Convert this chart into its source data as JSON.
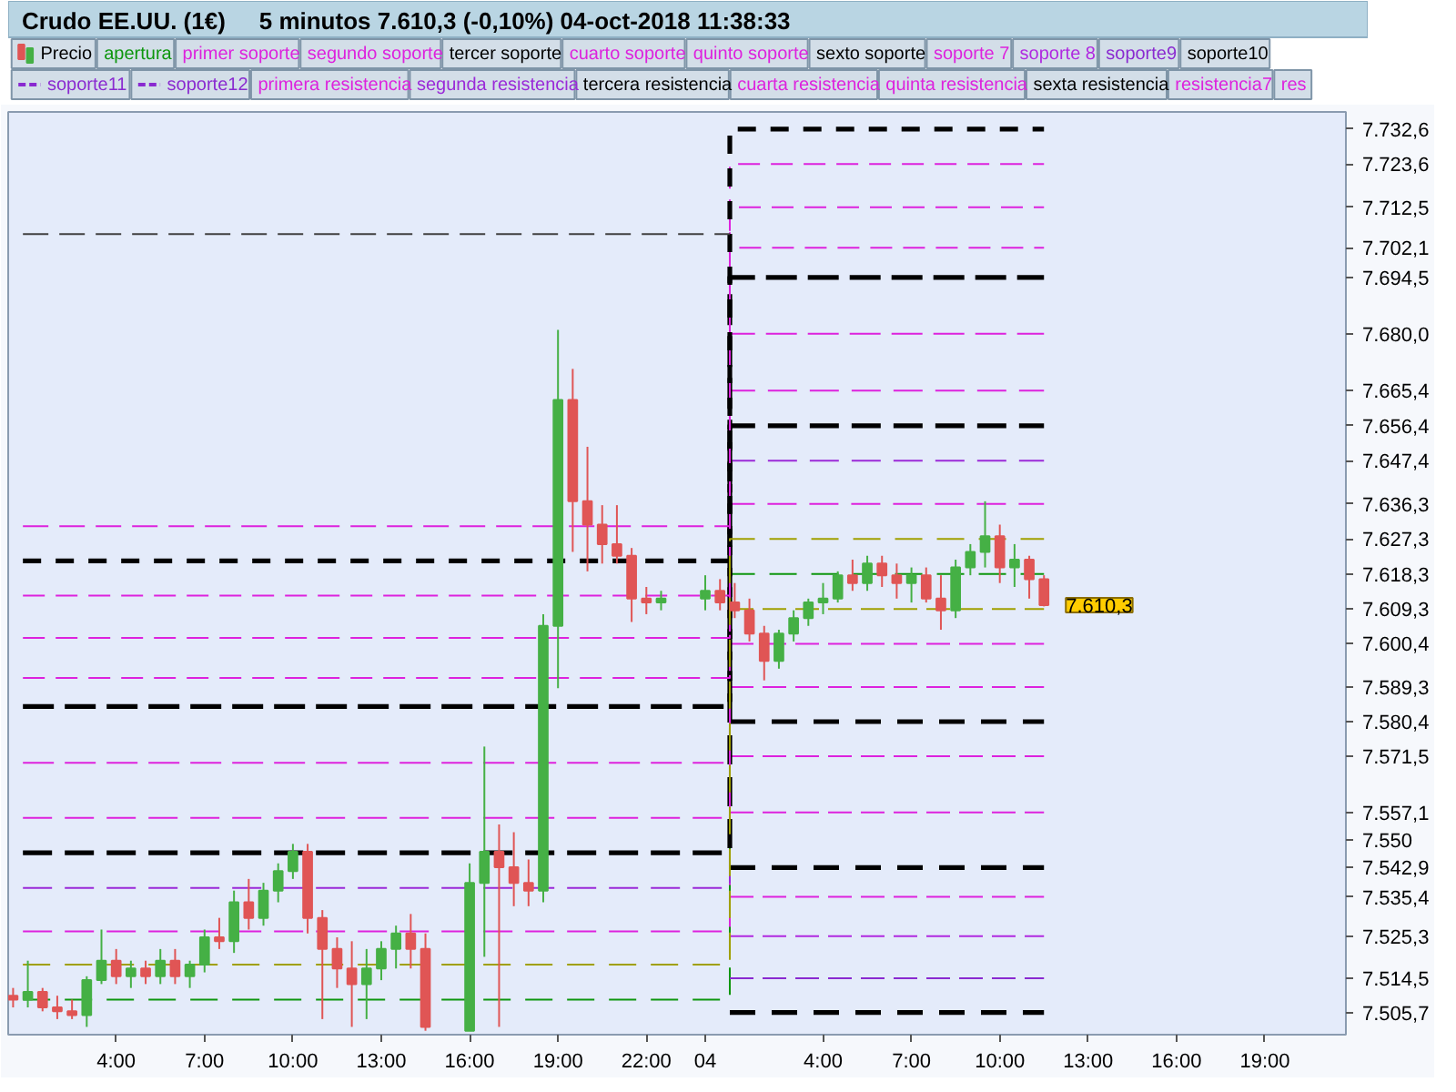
{
  "chart_data": {
    "type": "candlestick",
    "title": "Crudo EE.UU. (1€)",
    "subtitle": "5 minutos   7.610,3 (-0,10%)   04-oct-2018 11:38:33",
    "legend": "top",
    "xlim": [
      "2018-10-03T00:20",
      "2018-10-04T21:45"
    ],
    "xticks": [
      {
        "value": "2018-10-03T04:00",
        "label": "4:00"
      },
      {
        "value": "2018-10-03T07:00",
        "label": "7:00"
      },
      {
        "value": "2018-10-03T10:00",
        "label": "10:00"
      },
      {
        "value": "2018-10-03T13:00",
        "label": "13:00"
      },
      {
        "value": "2018-10-03T16:00",
        "label": "16:00"
      },
      {
        "value": "2018-10-03T19:00",
        "label": "19:00"
      },
      {
        "value": "2018-10-03T22:00",
        "label": "22:00"
      },
      {
        "value": "2018-10-04T00:00",
        "label": "04"
      },
      {
        "value": "2018-10-04T04:00",
        "label": "4:00"
      },
      {
        "value": "2018-10-04T07:00",
        "label": "7:00"
      },
      {
        "value": "2018-10-04T10:00",
        "label": "10:00"
      },
      {
        "value": "2018-10-04T13:00",
        "label": "13:00"
      },
      {
        "value": "2018-10-04T16:00",
        "label": "16:00"
      },
      {
        "value": "2018-10-04T19:00",
        "label": "19:00"
      }
    ],
    "ylim": [
      7500,
      7737
    ],
    "yticks": [
      {
        "value": 7505.7,
        "label": "7.505,7"
      },
      {
        "value": 7514.5,
        "label": "7.514,5"
      },
      {
        "value": 7525.3,
        "label": "7.525,3"
      },
      {
        "value": 7535.4,
        "label": "7.535,4"
      },
      {
        "value": 7542.9,
        "label": "7.542,9"
      },
      {
        "value": 7550,
        "label": "7.550"
      },
      {
        "value": 7557.1,
        "label": "7.557,1"
      },
      {
        "value": 7571.5,
        "label": "7.571,5"
      },
      {
        "value": 7580.4,
        "label": "7.580,4"
      },
      {
        "value": 7589.3,
        "label": "7.589,3"
      },
      {
        "value": 7600.4,
        "label": "7.600,4"
      },
      {
        "value": 7609.3,
        "label": "7.609,3"
      },
      {
        "value": 7618.3,
        "label": "7.618,3"
      },
      {
        "value": 7627.3,
        "label": "7.627,3"
      },
      {
        "value": 7636.3,
        "label": "7.636,3"
      },
      {
        "value": 7647.4,
        "label": "7.647,4"
      },
      {
        "value": 7656.4,
        "label": "7.656,4"
      },
      {
        "value": 7665.4,
        "label": "7.665,4"
      },
      {
        "value": 7680.0,
        "label": "7.680,0"
      },
      {
        "value": 7694.5,
        "label": "7.694,5"
      },
      {
        "value": 7702.1,
        "label": "7.702,1"
      },
      {
        "value": 7712.5,
        "label": "7.712,5"
      },
      {
        "value": 7723.6,
        "label": "7.723,6"
      },
      {
        "value": 7732.6,
        "label": "7.732,6"
      }
    ],
    "annotations": [
      {
        "text": "7.610,3",
        "x": "2018-10-04T11:30",
        "y": 7610.3
      }
    ],
    "x": [
      "2018-10-03T00:50",
      "2018-10-04T00:50",
      "2018-10-04T00:50",
      "2018-10-04T11:30"
    ],
    "series": [
      {
        "name": "Precio",
        "x": [
          "2018-10-03T00:30",
          "2018-10-03T01:00",
          "2018-10-03T01:30",
          "2018-10-03T02:00",
          "2018-10-03T02:30",
          "2018-10-03T03:00",
          "2018-10-03T03:30",
          "2018-10-03T04:00",
          "2018-10-03T04:30",
          "2018-10-03T05:00",
          "2018-10-03T05:30",
          "2018-10-03T06:00",
          "2018-10-03T06:30",
          "2018-10-03T07:00",
          "2018-10-03T07:30",
          "2018-10-03T08:00",
          "2018-10-03T08:30",
          "2018-10-03T09:00",
          "2018-10-03T09:30",
          "2018-10-03T10:00",
          "2018-10-03T10:30",
          "2018-10-03T11:00",
          "2018-10-03T11:30",
          "2018-10-03T12:00",
          "2018-10-03T12:30",
          "2018-10-03T13:00",
          "2018-10-03T13:30",
          "2018-10-03T14:00",
          "2018-10-03T14:30",
          "2018-10-03T16:00",
          "2018-10-03T16:30",
          "2018-10-03T17:00",
          "2018-10-03T17:30",
          "2018-10-03T18:00",
          "2018-10-03T18:30",
          "2018-10-03T19:00",
          "2018-10-03T19:30",
          "2018-10-03T20:00",
          "2018-10-03T20:30",
          "2018-10-03T21:00",
          "2018-10-03T21:30",
          "2018-10-03T22:00",
          "2018-10-03T22:30",
          "2018-10-04T00:00",
          "2018-10-04T00:30",
          "2018-10-04T01:00",
          "2018-10-04T01:30",
          "2018-10-04T02:00",
          "2018-10-04T02:30",
          "2018-10-04T03:00",
          "2018-10-04T03:30",
          "2018-10-04T04:00",
          "2018-10-04T04:30",
          "2018-10-04T05:00",
          "2018-10-04T05:30",
          "2018-10-04T06:00",
          "2018-10-04T06:30",
          "2018-10-04T07:00",
          "2018-10-04T07:30",
          "2018-10-04T08:00",
          "2018-10-04T08:30",
          "2018-10-04T09:00",
          "2018-10-04T09:30",
          "2018-10-04T10:00",
          "2018-10-04T10:30",
          "2018-10-04T11:00",
          "2018-10-04T11:30"
        ],
        "ohlc": [
          [
            7510,
            7512,
            7507,
            7509
          ],
          [
            7509,
            7519,
            7507,
            7511
          ],
          [
            7511,
            7512,
            7506,
            7507
          ],
          [
            7507,
            7510,
            7504,
            7506
          ],
          [
            7506,
            7509,
            7504,
            7505
          ],
          [
            7505,
            7515,
            7502,
            7514
          ],
          [
            7514,
            7527,
            7513,
            7519
          ],
          [
            7519,
            7522,
            7513,
            7515
          ],
          [
            7515,
            7519,
            7512,
            7517
          ],
          [
            7517,
            7519,
            7513,
            7515
          ],
          [
            7515,
            7522,
            7513,
            7519
          ],
          [
            7519,
            7522,
            7513,
            7515
          ],
          [
            7515,
            7519,
            7512,
            7518
          ],
          [
            7518,
            7527,
            7516,
            7525
          ],
          [
            7525,
            7530,
            7522,
            7524
          ],
          [
            7524,
            7537,
            7521,
            7534
          ],
          [
            7534,
            7540,
            7527,
            7530
          ],
          [
            7530,
            7539,
            7528,
            7537
          ],
          [
            7537,
            7544,
            7534,
            7542
          ],
          [
            7542,
            7549,
            7540,
            7547
          ],
          [
            7547,
            7549,
            7526,
            7530
          ],
          [
            7530,
            7532,
            7504,
            7522
          ],
          [
            7522,
            7525,
            7512,
            7517
          ],
          [
            7517,
            7524,
            7502,
            7513
          ],
          [
            7513,
            7522,
            7504,
            7517
          ],
          [
            7517,
            7524,
            7514,
            7522
          ],
          [
            7522,
            7528,
            7517,
            7526
          ],
          [
            7526,
            7531,
            7517,
            7522
          ],
          [
            7522,
            7526,
            7501,
            7502
          ],
          [
            7501,
            7544,
            7501,
            7539
          ],
          [
            7539,
            7574,
            7520,
            7547
          ],
          [
            7547,
            7554,
            7502,
            7543
          ],
          [
            7543,
            7552,
            7533,
            7539
          ],
          [
            7539,
            7545,
            7533,
            7537
          ],
          [
            7537,
            7608,
            7534,
            7605
          ],
          [
            7605,
            7681,
            7589,
            7663
          ],
          [
            7663,
            7671,
            7624,
            7637
          ],
          [
            7637,
            7651,
            7619,
            7631
          ],
          [
            7631,
            7636,
            7621,
            7626
          ],
          [
            7626,
            7636,
            7621,
            7623
          ],
          [
            7623,
            7625,
            7606,
            7612
          ],
          [
            7612,
            7615,
            7608,
            7611
          ],
          [
            7611,
            7614,
            7609,
            7612
          ],
          [
            7612,
            7618,
            7609,
            7614
          ],
          [
            7614,
            7617,
            7609,
            7611
          ],
          [
            7611,
            7616,
            7607,
            7609
          ],
          [
            7609,
            7612,
            7601,
            7603
          ],
          [
            7603,
            7605,
            7591,
            7596
          ],
          [
            7596,
            7604,
            7594,
            7603
          ],
          [
            7603,
            7609,
            7601,
            7607
          ],
          [
            7607,
            7612,
            7605,
            7611
          ],
          [
            7611,
            7616,
            7608,
            7612
          ],
          [
            7612,
            7619,
            7611,
            7618
          ],
          [
            7618,
            7622,
            7614,
            7616
          ],
          [
            7616,
            7623,
            7614,
            7621
          ],
          [
            7621,
            7623,
            7615,
            7618
          ],
          [
            7618,
            7621,
            7612,
            7616
          ],
          [
            7616,
            7620,
            7611,
            7618
          ],
          [
            7618,
            7620,
            7611,
            7612
          ],
          [
            7612,
            7618,
            7604,
            7609
          ],
          [
            7609,
            7622,
            7607,
            7620
          ],
          [
            7620,
            7626,
            7618,
            7624
          ],
          [
            7624,
            7637,
            7620,
            7628
          ],
          [
            7628,
            7631,
            7616,
            7620
          ],
          [
            7620,
            7626,
            7615,
            7622
          ],
          [
            7622,
            7623,
            7612,
            7617
          ],
          [
            7617,
            7618,
            7610,
            7610.3
          ]
        ],
        "colors": [
          "#e05555",
          "#45b045",
          "#e05555",
          "#e05555",
          "#e05555",
          "#45b045",
          "#45b045",
          "#e05555",
          "#45b045",
          "#e05555",
          "#45b045",
          "#e05555",
          "#45b045",
          "#45b045",
          "#e05555",
          "#45b045",
          "#e05555",
          "#45b045",
          "#45b045",
          "#45b045",
          "#e05555",
          "#e05555",
          "#e05555",
          "#e05555",
          "#45b045",
          "#45b045",
          "#45b045",
          "#e05555",
          "#e05555",
          "#45b045",
          "#45b045",
          "#e05555",
          "#e05555",
          "#e05555",
          "#45b045",
          "#45b045",
          "#e05555",
          "#e05555",
          "#e05555",
          "#e05555",
          "#e05555",
          "#e05555",
          "#45b045",
          "#45b045",
          "#e05555",
          "#e05555",
          "#e05555",
          "#e05555",
          "#45b045",
          "#45b045",
          "#45b045",
          "#45b045",
          "#45b045",
          "#e05555",
          "#45b045",
          "#e05555",
          "#e05555",
          "#45b045",
          "#e05555",
          "#e05555",
          "#45b045",
          "#45b045",
          "#45b045",
          "#e05555",
          "#45b045",
          "#e05555",
          "#e05555"
        ]
      },
      {
        "name": "apertura",
        "type": "line",
        "color": "#0e960e",
        "line_style": "dashed",
        "values": [
          7509.0,
          7509.0,
          7618.3,
          7618.3
        ]
      },
      {
        "name": "primer soporte",
        "type": "line",
        "color": "#dd22dd",
        "line_style": "dashed",
        "values": [
          null,
          null,
          7600.4,
          7600.4
        ]
      },
      {
        "name": "segundo soporte",
        "type": "line",
        "color": "#dd22dd",
        "line_style": "dashed",
        "values": [
          null,
          null,
          7589.3,
          7589.3
        ]
      },
      {
        "name": "tercer soporte",
        "type": "line",
        "color": "#000000",
        "line_style": "dashed",
        "values": [
          null,
          null,
          7580.4,
          7580.4
        ]
      },
      {
        "name": "cuarto soporte",
        "type": "line",
        "color": "#dd22dd",
        "line_style": "dashed",
        "values": [
          null,
          null,
          7571.5,
          7571.5
        ]
      },
      {
        "name": "quinto soporte",
        "type": "line",
        "color": "#dd22dd",
        "line_style": "dashed",
        "values": [
          null,
          null,
          7557.1,
          7557.1
        ]
      },
      {
        "name": "sexto soporte",
        "type": "line",
        "color": "#000000",
        "line_style": "dashed",
        "values": [
          null,
          null,
          7542.9,
          7542.9
        ]
      },
      {
        "name": "soporte 7",
        "type": "line",
        "color": "#dd22dd",
        "line_style": "dashed",
        "values": [
          null,
          null,
          7535.4,
          7535.4
        ]
      },
      {
        "name": "soporte 8",
        "type": "line",
        "color": "#b02ae0",
        "line_style": "dashed",
        "values": [
          null,
          null,
          7525.3,
          7525.3
        ]
      },
      {
        "name": "soporte9",
        "type": "line",
        "color": "#8a2ad0",
        "line_style": "dashed",
        "values": [
          null,
          null,
          7514.5,
          7514.5
        ]
      },
      {
        "name": "soporte10",
        "type": "line",
        "color": "#000000",
        "line_style": "dashed",
        "values": [
          null,
          null,
          7505.7,
          7505.7
        ]
      },
      {
        "name": "soporte11",
        "type": "line",
        "color": "#8a2ad0",
        "line_style": "dashed",
        "values": [
          null,
          null,
          null,
          null
        ]
      },
      {
        "name": "soporte12",
        "type": "line",
        "color": "#8a2ad0",
        "line_style": "dashed",
        "values": [
          null,
          null,
          null,
          null
        ]
      },
      {
        "name": "primera resistencia",
        "type": "line",
        "color": "#dd22dd",
        "line_style": "dashed",
        "values": [
          7526.5,
          7526.5,
          7636.3,
          7636.3
        ]
      },
      {
        "name": "segunda resistencia",
        "type": "line",
        "color": "#9a2ad8",
        "line_style": "dashed",
        "values": [
          7537.7,
          7537.7,
          7647.4,
          7647.4
        ]
      },
      {
        "name": "tercera resistencia",
        "type": "line",
        "color": "#000000",
        "line_style": "dashed",
        "values": [
          7546.7,
          7546.7,
          7656.4,
          7656.4
        ]
      },
      {
        "name": "cuarta resistencia",
        "type": "line",
        "color": "#dd22dd",
        "line_style": "dashed",
        "values": [
          7555.7,
          7555.7,
          7665.4,
          7665.4
        ]
      },
      {
        "name": "quinta resistencia",
        "type": "line",
        "color": "#dd22dd",
        "line_style": "dashed",
        "values": [
          7569.8,
          7569.8,
          7680.0,
          7680.0
        ]
      },
      {
        "name": "sexta resistencia",
        "type": "line",
        "color": "#000000",
        "line_style": "dashed",
        "values": [
          7584.3,
          7584.3,
          7694.5,
          7694.5
        ]
      },
      {
        "name": "resistencia7",
        "type": "line",
        "color": "#dd22dd",
        "line_style": "dashed",
        "values": [
          7591.6,
          7591.6,
          7702.1,
          7702.1
        ]
      },
      {
        "name": "res",
        "type": "line",
        "color": "#dd22dd",
        "line_style": "dashed",
        "values": [
          7601.9,
          7601.9,
          7712.5,
          7712.5
        ]
      },
      {
        "type": "line",
        "color": "#dd22dd",
        "line_style": "dashed",
        "values": [
          7612.8,
          7612.8,
          7723.6,
          7723.6
        ]
      },
      {
        "type": "line",
        "color": "#000000",
        "line_style": "dashed",
        "values": [
          7621.7,
          7621.7,
          7732.6,
          7732.6
        ]
      },
      {
        "type": "line",
        "color": "#dd22dd",
        "line_style": "dashed",
        "values": [
          7630.6,
          7630.6,
          null,
          null
        ]
      },
      {
        "type": "line",
        "color": "#a0a000",
        "line_style": "dashed",
        "values": [
          7518.0,
          7518.0,
          7627.3,
          7627.3
        ]
      },
      {
        "type": "line",
        "color": "#a0a000",
        "line_style": "dashed",
        "values": [
          null,
          null,
          7609.3,
          7609.3
        ]
      },
      {
        "type": "line",
        "color": "#404040",
        "line_style": "dashed",
        "values": [
          7705.6,
          7705.6,
          null,
          null
        ]
      }
    ]
  }
}
